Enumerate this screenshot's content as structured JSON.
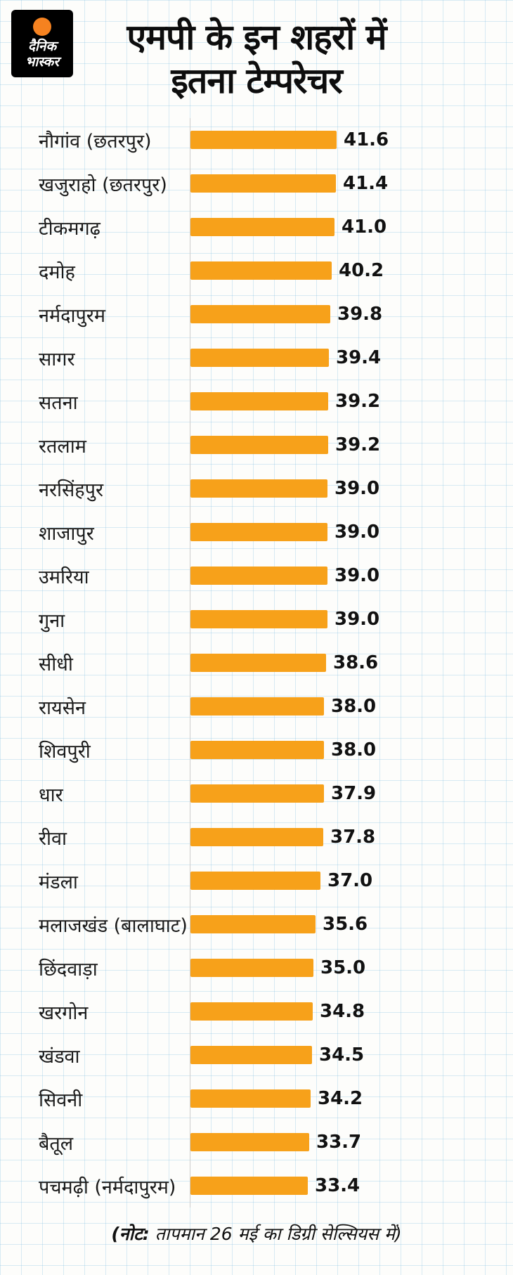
{
  "logo": {
    "line1": "दैनिक",
    "line2": "भास्कर"
  },
  "header": {
    "title_line1": "एमपी के इन शहरों में",
    "title_line2": "इतना टेम्परेचर"
  },
  "footer": {
    "note_bold": "(नोट:",
    "note_rest": " तापमान 26 मई का डिग्री सेल्सियस में)"
  },
  "colors": {
    "bar": "#F7A11A",
    "logo_bg": "#000000",
    "logo_sun": "#F58220",
    "grid": "#CDE4F2",
    "text": "#111111"
  },
  "chart_data": {
    "type": "bar",
    "orientation": "horizontal",
    "title": "एमपी के इन शहरों में इतना टेम्परेचर",
    "xlabel": "",
    "ylabel": "",
    "unit": "डिग्री सेल्सियस",
    "xlim": [
      0,
      41.6
    ],
    "grid": false,
    "legend": null,
    "note": "(नोट: तापमान 26 मई का डिग्री सेल्सियस में)",
    "categories": [
      "नौगांव (छतरपुर)",
      "खजुराहो (छतरपुर)",
      "टीकमगढ़",
      "दमोह",
      "नर्मदापुरम",
      "सागर",
      "सतना",
      "रतलाम",
      "नरसिंहपुर",
      "शाजापुर",
      "उमरिया",
      "गुना",
      "सीधी",
      "रायसेन",
      "शिवपुरी",
      "धार",
      "रीवा",
      "मंडला",
      "मलाजखंड (बालाघाट)",
      "छिंदवाड़ा",
      "खरगोन",
      "खंडवा",
      "सिवनी",
      "बैतूल",
      "पचमढ़ी (नर्मदापुरम)"
    ],
    "values": [
      41.6,
      41.4,
      41.0,
      40.2,
      39.8,
      39.4,
      39.2,
      39.2,
      39.0,
      39.0,
      39.0,
      39.0,
      38.6,
      38.0,
      38.0,
      37.9,
      37.8,
      37.0,
      35.6,
      35.0,
      34.8,
      34.5,
      34.2,
      33.7,
      33.4
    ]
  }
}
